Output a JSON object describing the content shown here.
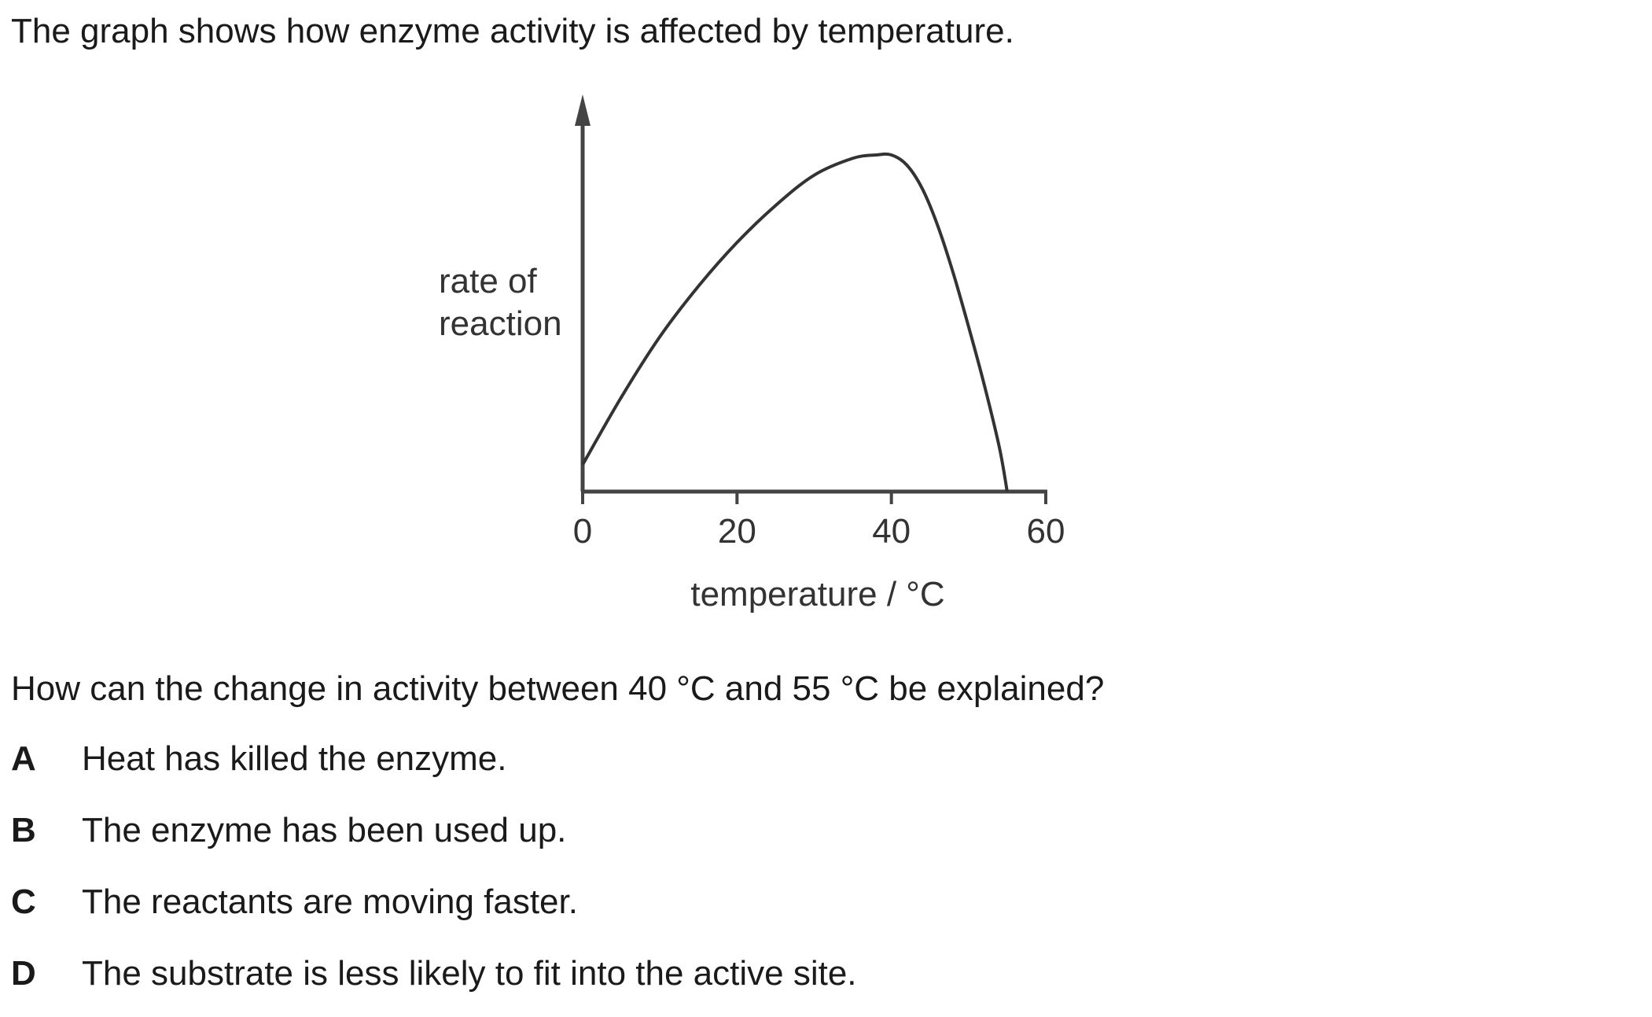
{
  "intro": "The graph shows how enzyme activity is affected by temperature.",
  "question": "How can the change in activity between 40 °C and 55 °C be explained?",
  "options": [
    {
      "letter": "A",
      "text": "Heat has killed the enzyme."
    },
    {
      "letter": "B",
      "text": "The enzyme has been used up."
    },
    {
      "letter": "C",
      "text": "The reactants are moving faster."
    },
    {
      "letter": "D",
      "text": "The substrate is less likely to fit into the active site."
    }
  ],
  "chart_data": {
    "type": "line",
    "title": "",
    "ylabel_lines": [
      "rate of",
      "reaction"
    ],
    "xlabel": "temperature / °C",
    "x_ticks": [
      0,
      20,
      40,
      60
    ],
    "xlim": [
      0,
      60
    ],
    "ylim": [
      0,
      1
    ],
    "y_tick_labels": "none",
    "series": [
      {
        "x": [
          0,
          5,
          10,
          15,
          20,
          25,
          30,
          35,
          38,
          40,
          42,
          44,
          46,
          48,
          50,
          52,
          54,
          55
        ],
        "y": [
          0.08,
          0.28,
          0.46,
          0.61,
          0.74,
          0.85,
          0.94,
          0.99,
          1.0,
          1.0,
          0.97,
          0.9,
          0.79,
          0.65,
          0.49,
          0.32,
          0.13,
          0.0
        ]
      }
    ],
    "line_color": "#333333",
    "axis_color": "#444444"
  }
}
